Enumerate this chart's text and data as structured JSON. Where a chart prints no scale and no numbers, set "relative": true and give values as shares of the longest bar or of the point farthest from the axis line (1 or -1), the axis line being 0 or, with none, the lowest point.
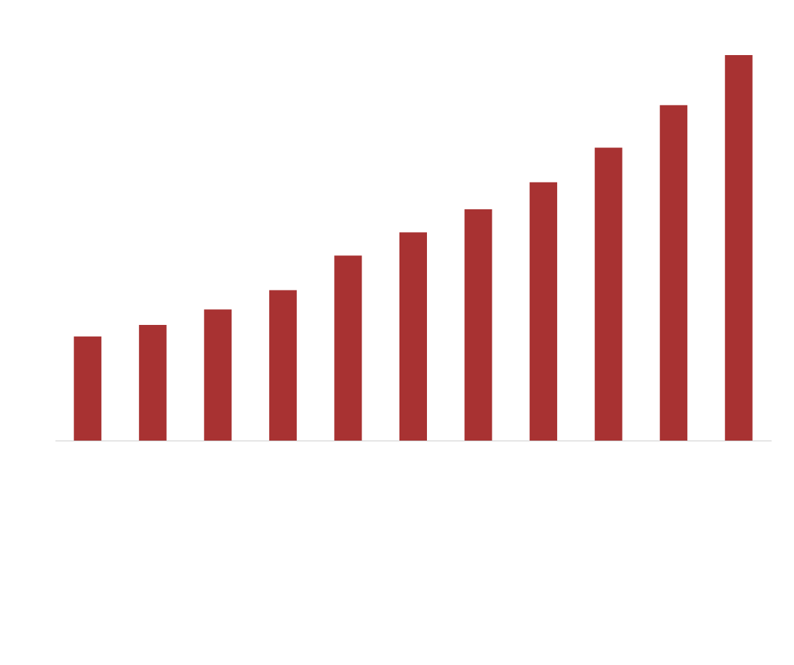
{
  "chart_data": {
    "type": "bar",
    "relative": true,
    "color": "#a83232",
    "categories": [
      null,
      null,
      null,
      null,
      null,
      null,
      null,
      null,
      null,
      null,
      null
    ],
    "values": [
      0.27,
      0.3,
      0.34,
      0.39,
      0.48,
      0.54,
      0.6,
      0.67,
      0.76,
      0.87,
      1
    ]
  }
}
